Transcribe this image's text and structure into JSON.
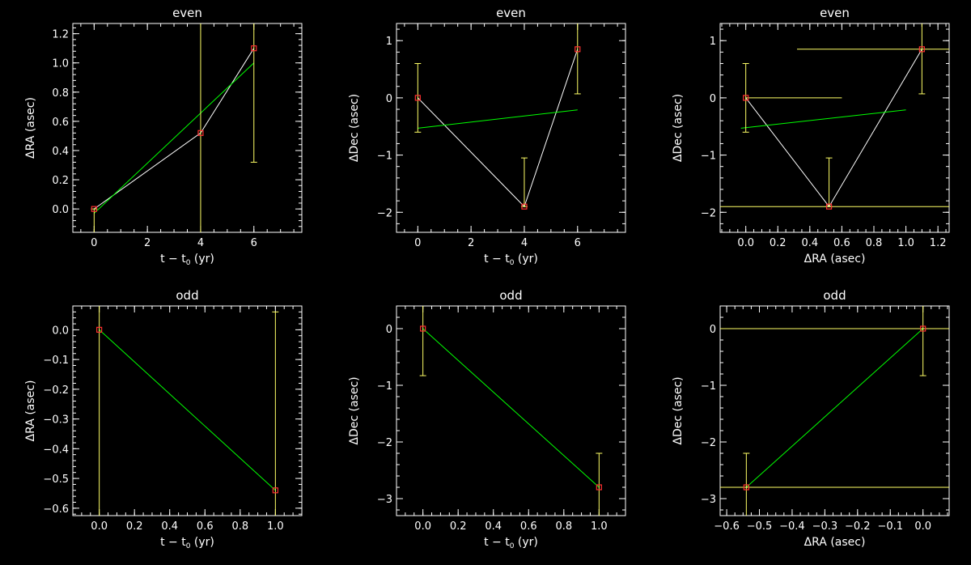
{
  "chart_data": [
    {
      "type": "scatter",
      "title": "even",
      "xlabel": "t − t",
      "xlabel_sub": "0",
      "xlabel_unit": " (yr)",
      "ylabel": "ΔRA (asec)",
      "xlim": [
        -0.8,
        7.8
      ],
      "ylim": [
        -0.16,
        1.27
      ],
      "xticks": [
        0,
        2,
        4,
        6
      ],
      "yticks": [
        0.0,
        0.2,
        0.4,
        0.6,
        0.8,
        1.0,
        1.2
      ],
      "xtick_labels": [
        "0",
        "2",
        "4",
        "6"
      ],
      "ytick_labels": [
        "0.0",
        "0.2",
        "0.4",
        "0.6",
        "0.8",
        "1.0",
        "1.2"
      ],
      "points": [
        {
          "x": 0,
          "y": 0.0,
          "yerr": [
            0.6,
            0.0
          ]
        },
        {
          "x": 4,
          "y": 0.52,
          "yerr": [
            2.0,
            2.0
          ]
        },
        {
          "x": 6,
          "y": 1.1,
          "yerr": [
            0.78,
            0.3
          ]
        }
      ],
      "fit_line": [
        [
          0,
          -0.03
        ],
        [
          6,
          1.0
        ]
      ]
    },
    {
      "type": "scatter",
      "title": "even",
      "xlabel": "t − t",
      "xlabel_sub": "0",
      "xlabel_unit": " (yr)",
      "ylabel": "ΔDec (asec)",
      "xlim": [
        -0.8,
        7.8
      ],
      "ylim": [
        -2.35,
        1.3
      ],
      "xticks": [
        0,
        2,
        4,
        6
      ],
      "yticks": [
        -2,
        -1,
        0,
        1
      ],
      "xtick_labels": [
        "0",
        "2",
        "4",
        "6"
      ],
      "ytick_labels": [
        "−2",
        "−1",
        "0",
        "1"
      ],
      "points": [
        {
          "x": 0,
          "y": 0.0,
          "yerr": [
            0.6,
            0.6
          ]
        },
        {
          "x": 4,
          "y": -1.9,
          "yerr": [
            0.0,
            0.85
          ]
        },
        {
          "x": 6,
          "y": 0.85,
          "yerr": [
            0.78,
            0.5
          ]
        }
      ],
      "fit_line": [
        [
          0,
          -0.53
        ],
        [
          6,
          -0.21
        ]
      ]
    },
    {
      "type": "scatter",
      "title": "even",
      "xlabel": "ΔRA (asec)",
      "xlabel_sub": "",
      "xlabel_unit": "",
      "ylabel": "ΔDec (asec)",
      "xlim": [
        -0.16,
        1.27
      ],
      "ylim": [
        -2.35,
        1.3
      ],
      "xticks": [
        0.0,
        0.2,
        0.4,
        0.6,
        0.8,
        1.0,
        1.2
      ],
      "yticks": [
        -2,
        -1,
        0,
        1
      ],
      "xtick_labels": [
        "0.0",
        "0.2",
        "0.4",
        "0.6",
        "0.8",
        "1.0",
        "1.2"
      ],
      "ytick_labels": [
        "−2",
        "−1",
        "0",
        "1"
      ],
      "points": [
        {
          "x": 0.0,
          "y": 0.0,
          "xerr": [
            0.0,
            0.6
          ],
          "yerr": [
            0.6,
            0.6
          ]
        },
        {
          "x": 0.52,
          "y": -1.9,
          "xerr": [
            1.0,
            1.0
          ],
          "yerr": [
            0.0,
            0.85
          ]
        },
        {
          "x": 1.1,
          "y": 0.85,
          "xerr": [
            0.78,
            0.3
          ],
          "yerr": [
            0.78,
            0.5
          ]
        }
      ],
      "fit_line": [
        [
          -0.03,
          -0.53
        ],
        [
          1.0,
          -0.21
        ]
      ]
    },
    {
      "type": "scatter",
      "title": "odd",
      "xlabel": "t − t",
      "xlabel_sub": "0",
      "xlabel_unit": " (yr)",
      "ylabel": "ΔRA (asec)",
      "xlim": [
        -0.15,
        1.15
      ],
      "ylim": [
        -0.625,
        0.08
      ],
      "xticks": [
        0.0,
        0.2,
        0.4,
        0.6,
        0.8,
        1.0
      ],
      "yticks": [
        -0.6,
        -0.5,
        -0.4,
        -0.3,
        -0.2,
        -0.1,
        0.0
      ],
      "xtick_labels": [
        "0.0",
        "0.2",
        "0.4",
        "0.6",
        "0.8",
        "1.0"
      ],
      "ytick_labels": [
        "−0.6",
        "−0.5",
        "−0.4",
        "−0.3",
        "−0.2",
        "−0.1",
        "0.0"
      ],
      "points": [
        {
          "x": 0.0,
          "y": 0.0,
          "yerr": [
            2.0,
            2.0
          ]
        },
        {
          "x": 1.0,
          "y": -0.54,
          "yerr": [
            2.0,
            0.6
          ]
        }
      ],
      "fit_line": [
        [
          0.0,
          0.0
        ],
        [
          1.0,
          -0.54
        ]
      ]
    },
    {
      "type": "scatter",
      "title": "odd",
      "xlabel": "t − t",
      "xlabel_sub": "0",
      "xlabel_unit": " (yr)",
      "ylabel": "ΔDec (asec)",
      "xlim": [
        -0.15,
        1.15
      ],
      "ylim": [
        -3.3,
        0.4
      ],
      "xticks": [
        0.0,
        0.2,
        0.4,
        0.6,
        0.8,
        1.0
      ],
      "yticks": [
        -3,
        -2,
        -1,
        0
      ],
      "xtick_labels": [
        "0.0",
        "0.2",
        "0.4",
        "0.6",
        "0.8",
        "1.0"
      ],
      "ytick_labels": [
        "−3",
        "−2",
        "−1",
        "0"
      ],
      "points": [
        {
          "x": 0.0,
          "y": 0.0,
          "yerr": [
            0.83,
            2.0
          ]
        },
        {
          "x": 1.0,
          "y": -2.8,
          "yerr": [
            2.0,
            0.6
          ]
        }
      ],
      "fit_line": [
        [
          0.0,
          0.0
        ],
        [
          1.0,
          -2.8
        ]
      ]
    },
    {
      "type": "scatter",
      "title": "odd",
      "xlabel": "ΔRA (asec)",
      "xlabel_sub": "",
      "xlabel_unit": "",
      "ylabel": "ΔDec (asec)",
      "xlim": [
        -0.62,
        0.08
      ],
      "ylim": [
        -3.3,
        0.4
      ],
      "xticks": [
        -0.6,
        -0.5,
        -0.4,
        -0.3,
        -0.2,
        -0.1,
        0.0
      ],
      "yticks": [
        -3,
        -2,
        -1,
        0
      ],
      "xtick_labels": [
        "−0.6",
        "−0.5",
        "−0.4",
        "−0.3",
        "−0.2",
        "−0.1",
        "0.0"
      ],
      "ytick_labels": [
        "−3",
        "−2",
        "−1",
        "0"
      ],
      "points": [
        {
          "x": -0.54,
          "y": -2.8,
          "xerr": [
            2.0,
            2.0
          ],
          "yerr": [
            2.0,
            0.6
          ]
        },
        {
          "x": 0.0,
          "y": 0.0,
          "xerr": [
            2.0,
            2.0
          ],
          "yerr": [
            0.83,
            2.0
          ]
        }
      ],
      "fit_line": [
        [
          -0.54,
          -2.8
        ],
        [
          0.0,
          0.0
        ]
      ]
    }
  ],
  "colors": {
    "background": "#000000",
    "axes": "#ffffff",
    "connect_line": "#ffffff",
    "fit_line": "#00ff00",
    "error_bars": "#ffff66",
    "markers": "#ff3030"
  }
}
